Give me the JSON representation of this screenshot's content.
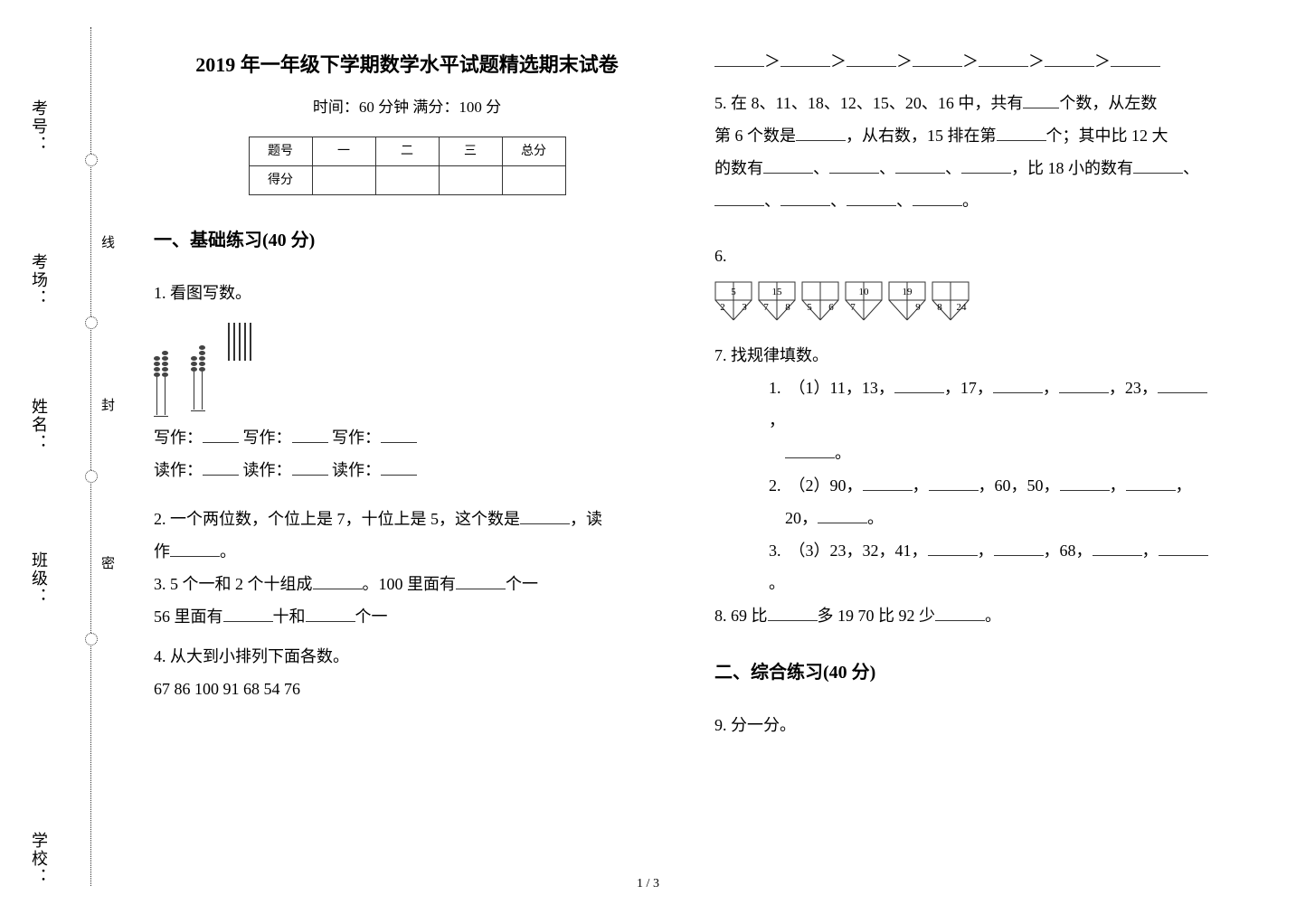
{
  "sidebar": {
    "labels": [
      "考号：",
      "考场：",
      "姓名：",
      "班级：",
      "学校："
    ],
    "seal_labels": [
      "线",
      "封",
      "密"
    ]
  },
  "header": {
    "title": "2019 年一年级下学期数学水平试题精选期末试卷",
    "subtitle": "时间：60 分钟   满分：100 分",
    "table_row1": [
      "题号",
      "一",
      "二",
      "三",
      "总分"
    ],
    "table_row2_first": "得分"
  },
  "section1": {
    "heading": "一、基础练习(40 分)"
  },
  "q1": {
    "stem": "1.  看图写数。",
    "write": "写作：",
    "read": "读作："
  },
  "q2": {
    "text_a": "2.  一个两位数，个位上是 7，十位上是 5，这个数是",
    "text_b": "，读",
    "text_c": "作",
    "text_d": "。"
  },
  "q3": {
    "a": "3.  5 个一和 2 个十组成",
    "b": "。100 里面有",
    "c": "个一"
  },
  "q3b": {
    "a": "56 里面有",
    "b": "十和",
    "c": "个一"
  },
  "q4": {
    "stem": "4.  从大到小排列下面各数。",
    "nums": "67  86  100  91  68  54  76"
  },
  "q5": {
    "a": "5.  在 8、11、18、12、15、20、16 中，共有",
    "b": "个数，从左数",
    "c": "第 6 个数是",
    "d": "，从右数，15 排在第",
    "e": "个；其中比 12 大",
    "f": "的数有",
    "g": "、",
    "h": "，比 18 小的数有",
    "i": "。",
    "comma": "、"
  },
  "q6": {
    "stem": "6.",
    "fans": [
      {
        "l": "2",
        "t": "5",
        "r": "3"
      },
      {
        "l": "7",
        "t": "15",
        "r": "8"
      },
      {
        "l": "5",
        "t": "",
        "r": "6"
      },
      {
        "l": "7",
        "t": "10",
        "r": ""
      },
      {
        "l": "",
        "t": "19",
        "r": "9"
      },
      {
        "l": "8",
        "t": "",
        "r": "24"
      }
    ]
  },
  "q7": {
    "stem": "7.  找规律填数。",
    "items": [
      {
        "n": "1.",
        "a": "（1）11，13，",
        "b": "，17，",
        "c": "，",
        "d": "，23，",
        "e": "，",
        "f": "。"
      },
      {
        "n": "2.",
        "a": "（2）90，",
        "b": "，",
        "c": "，60，50，",
        "d": "，",
        "e": "，",
        "f2a": "20，",
        "f2b": "。"
      },
      {
        "n": "3.",
        "a": "（3）23，32，41，",
        "b": "，",
        "c": "，68，",
        "d": "，",
        "e": "。"
      }
    ]
  },
  "q8": {
    "a": "8.  69 比",
    "b": "多 19  70 比 92 少",
    "c": "。"
  },
  "section2": {
    "heading": "二、综合练习(40 分)"
  },
  "q9": {
    "stem": "9.  分一分。"
  },
  "footer": {
    "page": "1 / 3"
  },
  "colors": {
    "text": "#000000",
    "line": "#333333",
    "bg": "#ffffff"
  }
}
